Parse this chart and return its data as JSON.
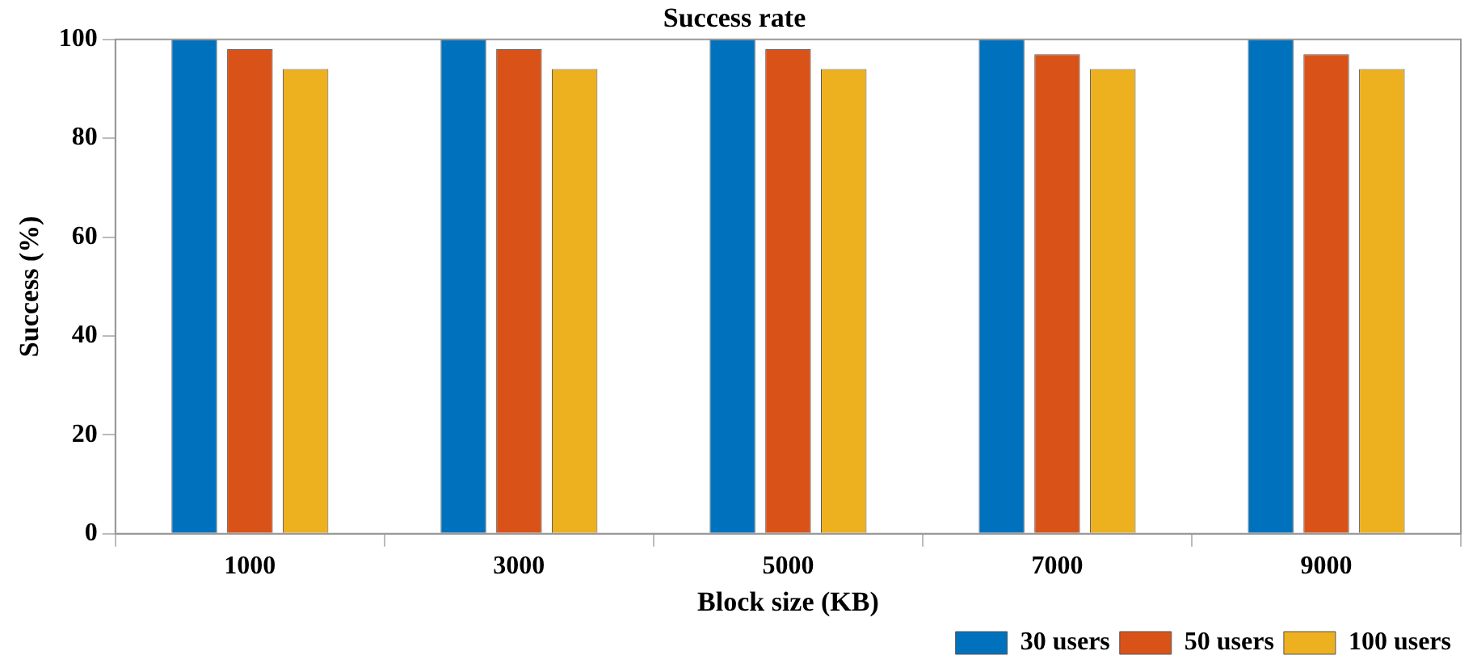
{
  "chart_data": {
    "type": "bar",
    "title": "Success rate",
    "xlabel": "Block size (KB)",
    "ylabel": "Success (%)",
    "categories": [
      "1000",
      "3000",
      "5000",
      "7000",
      "9000"
    ],
    "series": [
      {
        "name": "30 users",
        "color": "#0072bd",
        "values": [
          100,
          100,
          100,
          100,
          100
        ]
      },
      {
        "name": "50 users",
        "color": "#d95319",
        "values": [
          98,
          98,
          98,
          97,
          97
        ]
      },
      {
        "name": "100 users",
        "color": "#edb120",
        "values": [
          94,
          94,
          94,
          94,
          94
        ]
      }
    ],
    "ylim": [
      0,
      100
    ],
    "yticks": [
      0,
      20,
      40,
      60,
      80,
      100
    ],
    "grid": false,
    "legend": "bottom right"
  }
}
